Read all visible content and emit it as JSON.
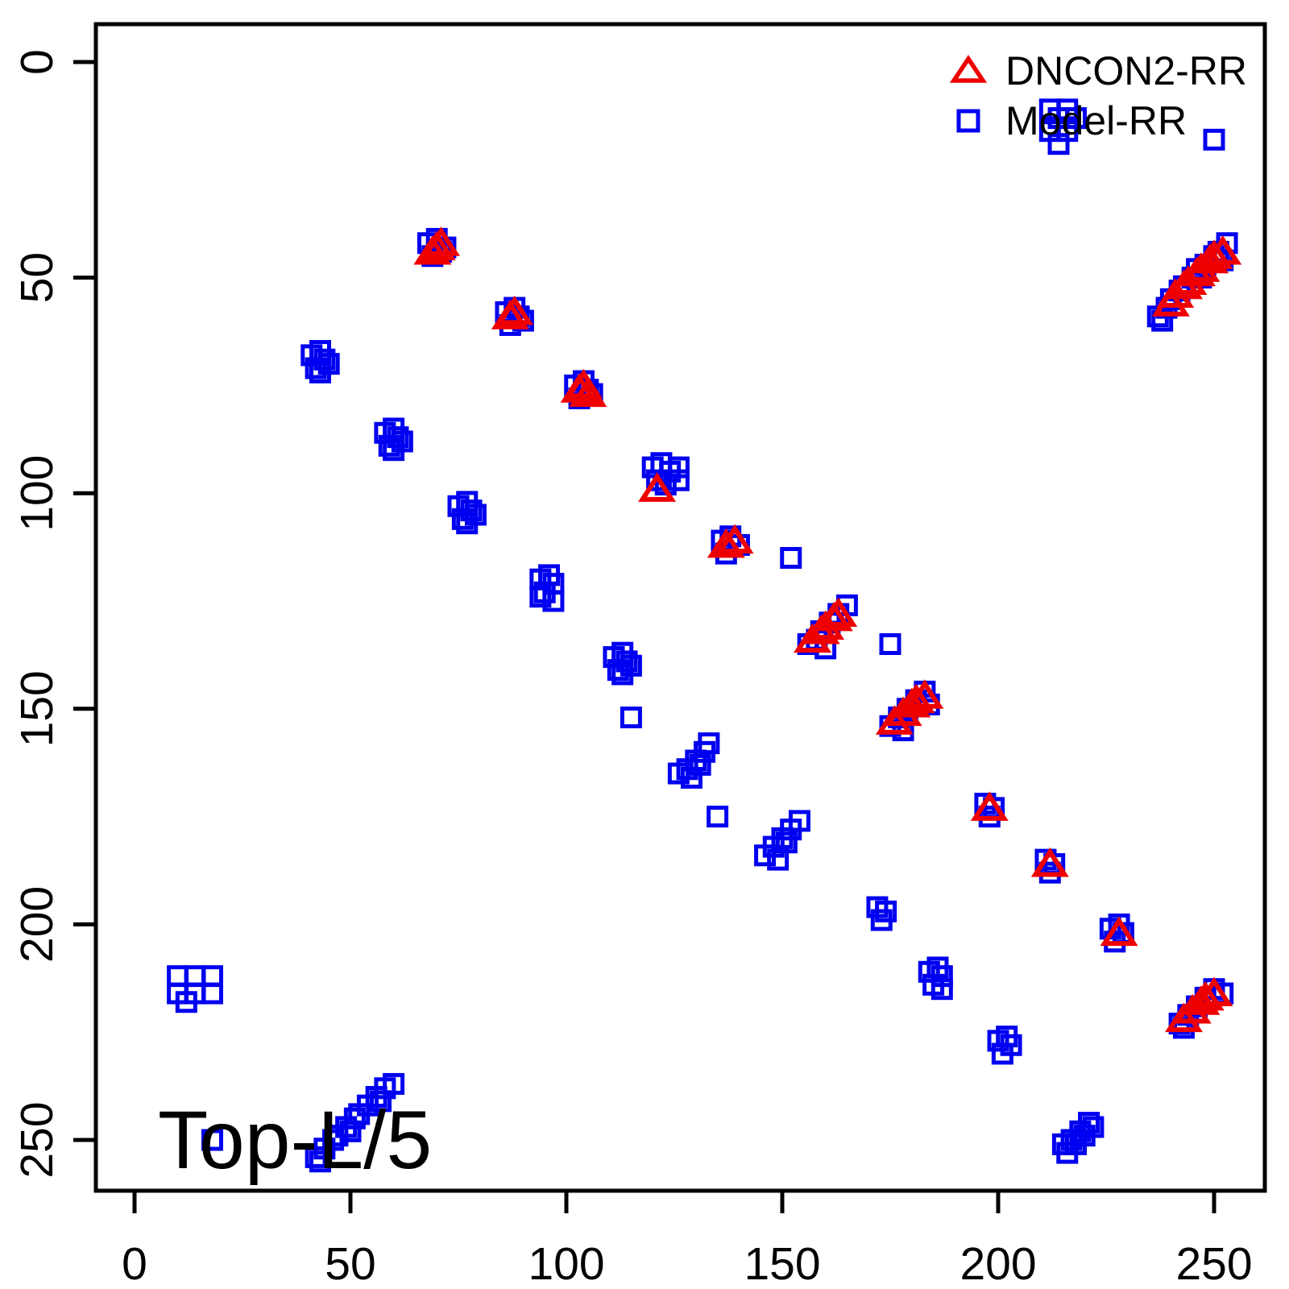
{
  "figure": {
    "background": "#ffffff",
    "annotation": "Top-L/5",
    "axis_color": "#000000",
    "legend": [
      {
        "label": "DNCON2-RR",
        "marker": "triangle",
        "color": "#ee0000"
      },
      {
        "label": "Model-RR",
        "marker": "square",
        "color": "#0000f0"
      }
    ]
  },
  "chart_data": {
    "type": "scatter",
    "title": "",
    "xlabel": "",
    "ylabel": "",
    "grid": false,
    "legend_position": "top-right",
    "x_ticks": [
      0,
      50,
      100,
      150,
      200,
      250
    ],
    "y_ticks": [
      0,
      50,
      100,
      150,
      200,
      250
    ],
    "xlim": [
      -9,
      262
    ],
    "ylim": [
      -9,
      262
    ],
    "y_axis_reversed": true,
    "series": [
      {
        "name": "Model-RR",
        "marker": "square",
        "color": "#0000f0",
        "points": [
          [
            68,
            42
          ],
          [
            70,
            41
          ],
          [
            72,
            43
          ],
          [
            69,
            45
          ],
          [
            71,
            44
          ],
          [
            237,
            59
          ],
          [
            238,
            60
          ],
          [
            239,
            57
          ],
          [
            240,
            55
          ],
          [
            242,
            53
          ],
          [
            243,
            52
          ],
          [
            245,
            50
          ],
          [
            246,
            48
          ],
          [
            247,
            50
          ],
          [
            248,
            47
          ],
          [
            250,
            45
          ],
          [
            251,
            44
          ],
          [
            252,
            46
          ],
          [
            253,
            42
          ],
          [
            86,
            58
          ],
          [
            88,
            57
          ],
          [
            89,
            59
          ],
          [
            87,
            61
          ],
          [
            90,
            60
          ],
          [
            41,
            68
          ],
          [
            43,
            67
          ],
          [
            44,
            69
          ],
          [
            42,
            71
          ],
          [
            45,
            70
          ],
          [
            43,
            72
          ],
          [
            102,
            75
          ],
          [
            104,
            74
          ],
          [
            105,
            76
          ],
          [
            103,
            78
          ],
          [
            106,
            77
          ],
          [
            58,
            86
          ],
          [
            60,
            85
          ],
          [
            61,
            87
          ],
          [
            59,
            89
          ],
          [
            62,
            88
          ],
          [
            60,
            90
          ],
          [
            120,
            94
          ],
          [
            122,
            93
          ],
          [
            124,
            95
          ],
          [
            126,
            94
          ],
          [
            121,
            97
          ],
          [
            123,
            98
          ],
          [
            126,
            97
          ],
          [
            75,
            103
          ],
          [
            77,
            102
          ],
          [
            78,
            104
          ],
          [
            76,
            106
          ],
          [
            79,
            105
          ],
          [
            77,
            107
          ],
          [
            136,
            111
          ],
          [
            138,
            110
          ],
          [
            140,
            112
          ],
          [
            137,
            114
          ],
          [
            152,
            115
          ],
          [
            94,
            120
          ],
          [
            96,
            119
          ],
          [
            97,
            121
          ],
          [
            95,
            123
          ],
          [
            97,
            125
          ],
          [
            94,
            124
          ],
          [
            156,
            135
          ],
          [
            158,
            134
          ],
          [
            159,
            132
          ],
          [
            161,
            130
          ],
          [
            163,
            128
          ],
          [
            160,
            136
          ],
          [
            165,
            126
          ],
          [
            175,
            135
          ],
          [
            111,
            138
          ],
          [
            113,
            137
          ],
          [
            114,
            139
          ],
          [
            112,
            141
          ],
          [
            115,
            140
          ],
          [
            113,
            142
          ],
          [
            175,
            154
          ],
          [
            177,
            152
          ],
          [
            179,
            150
          ],
          [
            181,
            148
          ],
          [
            183,
            146
          ],
          [
            178,
            155
          ],
          [
            184,
            149
          ],
          [
            115,
            152
          ],
          [
            126,
            165
          ],
          [
            128,
            164
          ],
          [
            130,
            162
          ],
          [
            132,
            160
          ],
          [
            129,
            166
          ],
          [
            131,
            163
          ],
          [
            133,
            158
          ],
          [
            135,
            175
          ],
          [
            146,
            184
          ],
          [
            148,
            182
          ],
          [
            150,
            180
          ],
          [
            152,
            178
          ],
          [
            154,
            176
          ],
          [
            149,
            185
          ],
          [
            151,
            181
          ],
          [
            197,
            172
          ],
          [
            199,
            173
          ],
          [
            198,
            175
          ],
          [
            211,
            185
          ],
          [
            213,
            186
          ],
          [
            212,
            188
          ],
          [
            172,
            196
          ],
          [
            174,
            197
          ],
          [
            173,
            199
          ],
          [
            226,
            201
          ],
          [
            228,
            200
          ],
          [
            229,
            202
          ],
          [
            227,
            204
          ],
          [
            184,
            211
          ],
          [
            186,
            210
          ],
          [
            187,
            212
          ],
          [
            185,
            214
          ],
          [
            187,
            215
          ],
          [
            10,
            212
          ],
          [
            14,
            212
          ],
          [
            18,
            212
          ],
          [
            10,
            216
          ],
          [
            14,
            216
          ],
          [
            18,
            216
          ],
          [
            12,
            218
          ],
          [
            242,
            223
          ],
          [
            244,
            221
          ],
          [
            246,
            219
          ],
          [
            248,
            217
          ],
          [
            250,
            215
          ],
          [
            243,
            224
          ],
          [
            252,
            216
          ],
          [
            200,
            227
          ],
          [
            202,
            226
          ],
          [
            203,
            228
          ],
          [
            201,
            230
          ],
          [
            42,
            254
          ],
          [
            43,
            255
          ],
          [
            44,
            252
          ],
          [
            46,
            250
          ],
          [
            47,
            249
          ],
          [
            49,
            247
          ],
          [
            50,
            248
          ],
          [
            51,
            245
          ],
          [
            52,
            244
          ],
          [
            54,
            242
          ],
          [
            56,
            240
          ],
          [
            57,
            241
          ],
          [
            58,
            238
          ],
          [
            60,
            237
          ],
          [
            215,
            251
          ],
          [
            217,
            250
          ],
          [
            219,
            248
          ],
          [
            221,
            246
          ],
          [
            216,
            253
          ],
          [
            218,
            251
          ],
          [
            220,
            249
          ],
          [
            222,
            247
          ],
          [
            212,
            11
          ],
          [
            216,
            11
          ],
          [
            212,
            16
          ],
          [
            216,
            16
          ],
          [
            214,
            13
          ],
          [
            218,
            13
          ],
          [
            214,
            19
          ],
          [
            250,
            18
          ],
          [
            18,
            250
          ]
        ]
      },
      {
        "name": "DNCON2-RR",
        "marker": "triangle",
        "color": "#ee0000",
        "points": [
          [
            69,
            44
          ],
          [
            70,
            43
          ],
          [
            71,
            42
          ],
          [
            240,
            56
          ],
          [
            241,
            54
          ],
          [
            243,
            52
          ],
          [
            244,
            51
          ],
          [
            246,
            49
          ],
          [
            247,
            48
          ],
          [
            249,
            46
          ],
          [
            250,
            45
          ],
          [
            252,
            44
          ],
          [
            87,
            59
          ],
          [
            88,
            58
          ],
          [
            103,
            76
          ],
          [
            104,
            75
          ],
          [
            105,
            77
          ],
          [
            121,
            99
          ],
          [
            137,
            112
          ],
          [
            139,
            111
          ],
          [
            157,
            134
          ],
          [
            159,
            132
          ],
          [
            160,
            131
          ],
          [
            162,
            129
          ],
          [
            163,
            128
          ],
          [
            176,
            153
          ],
          [
            178,
            151
          ],
          [
            180,
            149
          ],
          [
            181,
            148
          ],
          [
            183,
            147
          ],
          [
            198,
            173
          ],
          [
            212,
            186
          ],
          [
            228,
            202
          ],
          [
            243,
            222
          ],
          [
            245,
            220
          ],
          [
            247,
            218
          ],
          [
            248,
            217
          ],
          [
            250,
            216
          ]
        ]
      }
    ]
  }
}
